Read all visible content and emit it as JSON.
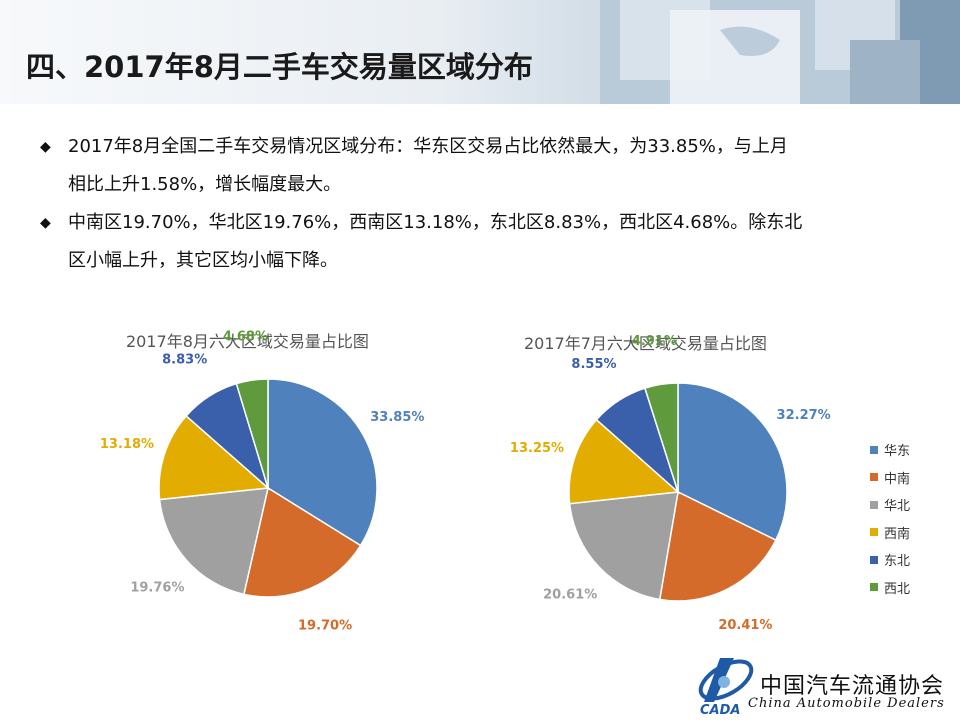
{
  "title": "四、2017年8月二手车交易量区域分布",
  "bullets": [
    {
      "icon": "diamond-bullet-icon",
      "line1": "2017年8月全国二手车交易情况区域分布：华东区交易占比依然最大，为33.85%，与上月",
      "line2": "相比上升1.58%，增长幅度最大。"
    },
    {
      "icon": "diamond-bullet-icon",
      "line1": "中南区19.70%，华北区19.76%，西南区13.18%，东北区8.83%，西北区4.68%。除东北",
      "line2": "区小幅上升，其它区均小幅下降。"
    }
  ],
  "colors": {
    "华东": "#4f81bd",
    "中南": "#d46b2a",
    "华北": "#a0a0a0",
    "西南": "#e3ac00",
    "东北": "#3a5fab",
    "西北": "#5f9a3c"
  },
  "chart_data": [
    {
      "type": "pie",
      "title": "2017年8月六大区域交易量占比图",
      "categories": [
        "华东",
        "中南",
        "华北",
        "西南",
        "东北",
        "西北"
      ],
      "values": [
        33.85,
        19.7,
        19.76,
        13.18,
        8.83,
        4.68
      ],
      "labels": [
        "33.85%",
        "19.70%",
        "19.76%",
        "13.18%",
        "8.83%",
        "4.68%"
      ]
    },
    {
      "type": "pie",
      "title": "2017年7月六大区域交易量占比图",
      "categories": [
        "华东",
        "中南",
        "华北",
        "西南",
        "东北",
        "西北"
      ],
      "values": [
        32.27,
        20.41,
        20.61,
        13.25,
        8.55,
        4.91
      ],
      "labels": [
        "32.27%",
        "20.41%",
        "20.61%",
        "13.25%",
        "8.55%",
        "4.91%"
      ],
      "legend_position": "right"
    }
  ],
  "legend": [
    "华东",
    "中南",
    "华北",
    "西南",
    "东北",
    "西北"
  ],
  "footer": {
    "org_name": "中国汽车流通协会",
    "org_en": "China  Automobile Dealers",
    "logo_text": "CADA"
  }
}
